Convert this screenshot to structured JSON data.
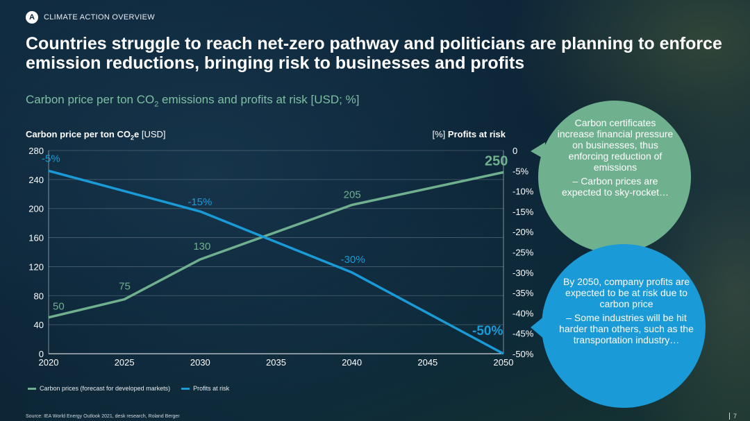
{
  "header": {
    "badge": "A",
    "section": "CLIMATE ACTION OVERVIEW",
    "title": "Countries struggle to reach net-zero pathway and politicians are planning to enforce emission reductions, bringing risk to businesses and profits",
    "subtitle_main": "Carbon price per ton CO",
    "subtitle_sub": "2",
    "subtitle_rest": " emissions and profits at risk [USD; %]"
  },
  "axis_titles": {
    "left_bold": "Carbon price per ton CO",
    "left_sub": "2",
    "left_bold_end": "e",
    "left_unit": " [USD]",
    "right_unit": "[%] ",
    "right_bold": "Profits at risk"
  },
  "chart_data": {
    "type": "line",
    "x": [
      2020,
      2025,
      2030,
      2035,
      2040,
      2045,
      2050
    ],
    "x_ticks": [
      "2020",
      "2025",
      "2030",
      "2035",
      "2040",
      "2045",
      "2050"
    ],
    "y_left_ticks": [
      0,
      40,
      80,
      120,
      160,
      200,
      240,
      280
    ],
    "y_left_range": [
      0,
      280
    ],
    "y_right_ticks": [
      "0",
      "-5%",
      "-10%",
      "-15%",
      "-20%",
      "-25%",
      "-30%",
      "-35%",
      "-40%",
      "-45%",
      "-50%"
    ],
    "y_right_range": [
      -50,
      0
    ],
    "series": [
      {
        "name": "Carbon prices (forecast for developed markets)",
        "axis": "left",
        "color": "#6fb08f",
        "points": [
          [
            2020,
            50
          ],
          [
            2025,
            75
          ],
          [
            2030,
            130
          ],
          [
            2040,
            205
          ],
          [
            2050,
            250
          ]
        ],
        "labels": [
          "50",
          "75",
          "130",
          "205",
          "250"
        ]
      },
      {
        "name": "Profits at risk",
        "axis": "right",
        "color": "#1a9ad6",
        "points": [
          [
            2020,
            -5
          ],
          [
            2030,
            -15
          ],
          [
            2040,
            -30
          ],
          [
            2050,
            -50
          ]
        ],
        "labels": [
          "-5%",
          "-15%",
          "-30%",
          "-50%"
        ]
      }
    ]
  },
  "legend": {
    "carbon": "Carbon prices (forecast for developed markets)",
    "profits": "Profits at risk"
  },
  "callouts": {
    "green": {
      "color": "#6fb08f",
      "line1": "Carbon certificates increase financial pressure on businesses, thus enforcing reduction of emissions",
      "line2": "– Carbon prices are expected to sky-rocket…"
    },
    "blue": {
      "color": "#1a9ad6",
      "line1": "By 2050, company profits are expected to be at risk due to carbon price",
      "line2": "– Some industries will be hit harder than others, such as the transportation industry…"
    }
  },
  "footer": {
    "source": "Source: IEA World Energy Outlook 2021, desk research, Roland Berger",
    "page": "7"
  }
}
